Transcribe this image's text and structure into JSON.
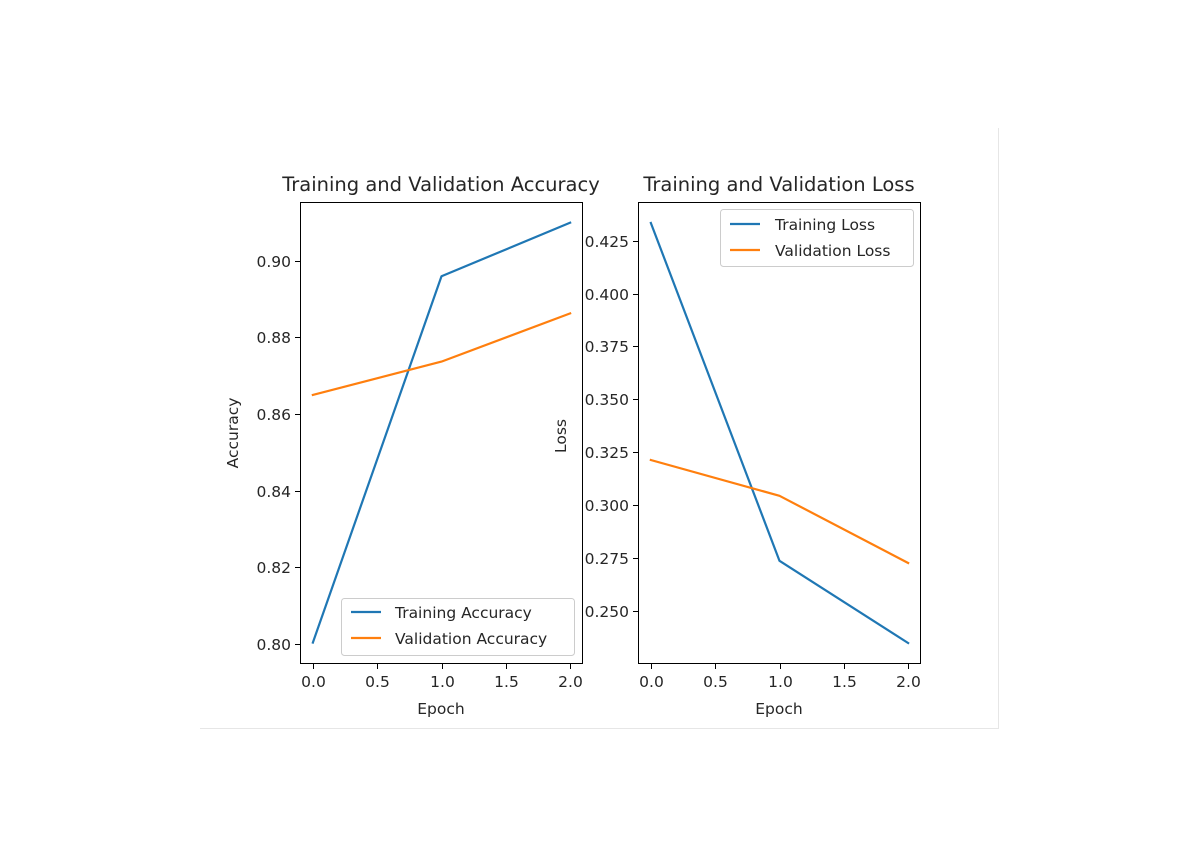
{
  "chart_data": [
    {
      "type": "line",
      "title": "Training and Validation Accuracy",
      "xlabel": "Epoch",
      "ylabel": "Accuracy",
      "x": [
        0,
        1,
        2
      ],
      "xlim": [
        -0.1,
        2.1
      ],
      "ylim": [
        0.7947,
        0.9154
      ],
      "xticks": [
        0.0,
        0.5,
        1.0,
        1.5,
        2.0
      ],
      "xtick_labels": [
        "0.0",
        "0.5",
        "1.0",
        "1.5",
        "2.0"
      ],
      "yticks": [
        0.8,
        0.82,
        0.84,
        0.86,
        0.88,
        0.9
      ],
      "ytick_labels": [
        "0.80",
        "0.82",
        "0.84",
        "0.86",
        "0.88",
        "0.90"
      ],
      "legend_position": "lower-right",
      "grid": false,
      "series": [
        {
          "name": "Training Accuracy",
          "values": [
            0.8003,
            0.896,
            0.91
          ],
          "color": "#1f77b4"
        },
        {
          "name": "Validation Accuracy",
          "values": [
            0.865,
            0.8737,
            0.8863
          ],
          "color": "#ff7f0e"
        }
      ]
    },
    {
      "type": "line",
      "title": "Training and Validation Loss",
      "xlabel": "Epoch",
      "ylabel": "Loss",
      "x": [
        0,
        1,
        2
      ],
      "xlim": [
        -0.1,
        2.1
      ],
      "ylim": [
        0.2251,
        0.4432
      ],
      "xticks": [
        0.0,
        0.5,
        1.0,
        1.5,
        2.0
      ],
      "xtick_labels": [
        "0.0",
        "0.5",
        "1.0",
        "1.5",
        "2.0"
      ],
      "yticks": [
        0.25,
        0.275,
        0.3,
        0.325,
        0.35,
        0.375,
        0.4,
        0.425
      ],
      "ytick_labels": [
        "0.250",
        "0.275",
        "0.300",
        "0.325",
        "0.350",
        "0.375",
        "0.400",
        "0.425"
      ],
      "legend_position": "upper-right",
      "grid": false,
      "series": [
        {
          "name": "Training Loss",
          "values": [
            0.4333,
            0.2738,
            0.235
          ],
          "color": "#1f77b4"
        },
        {
          "name": "Validation Loss",
          "values": [
            0.3214,
            0.3045,
            0.2728
          ],
          "color": "#ff7f0e"
        }
      ]
    }
  ]
}
